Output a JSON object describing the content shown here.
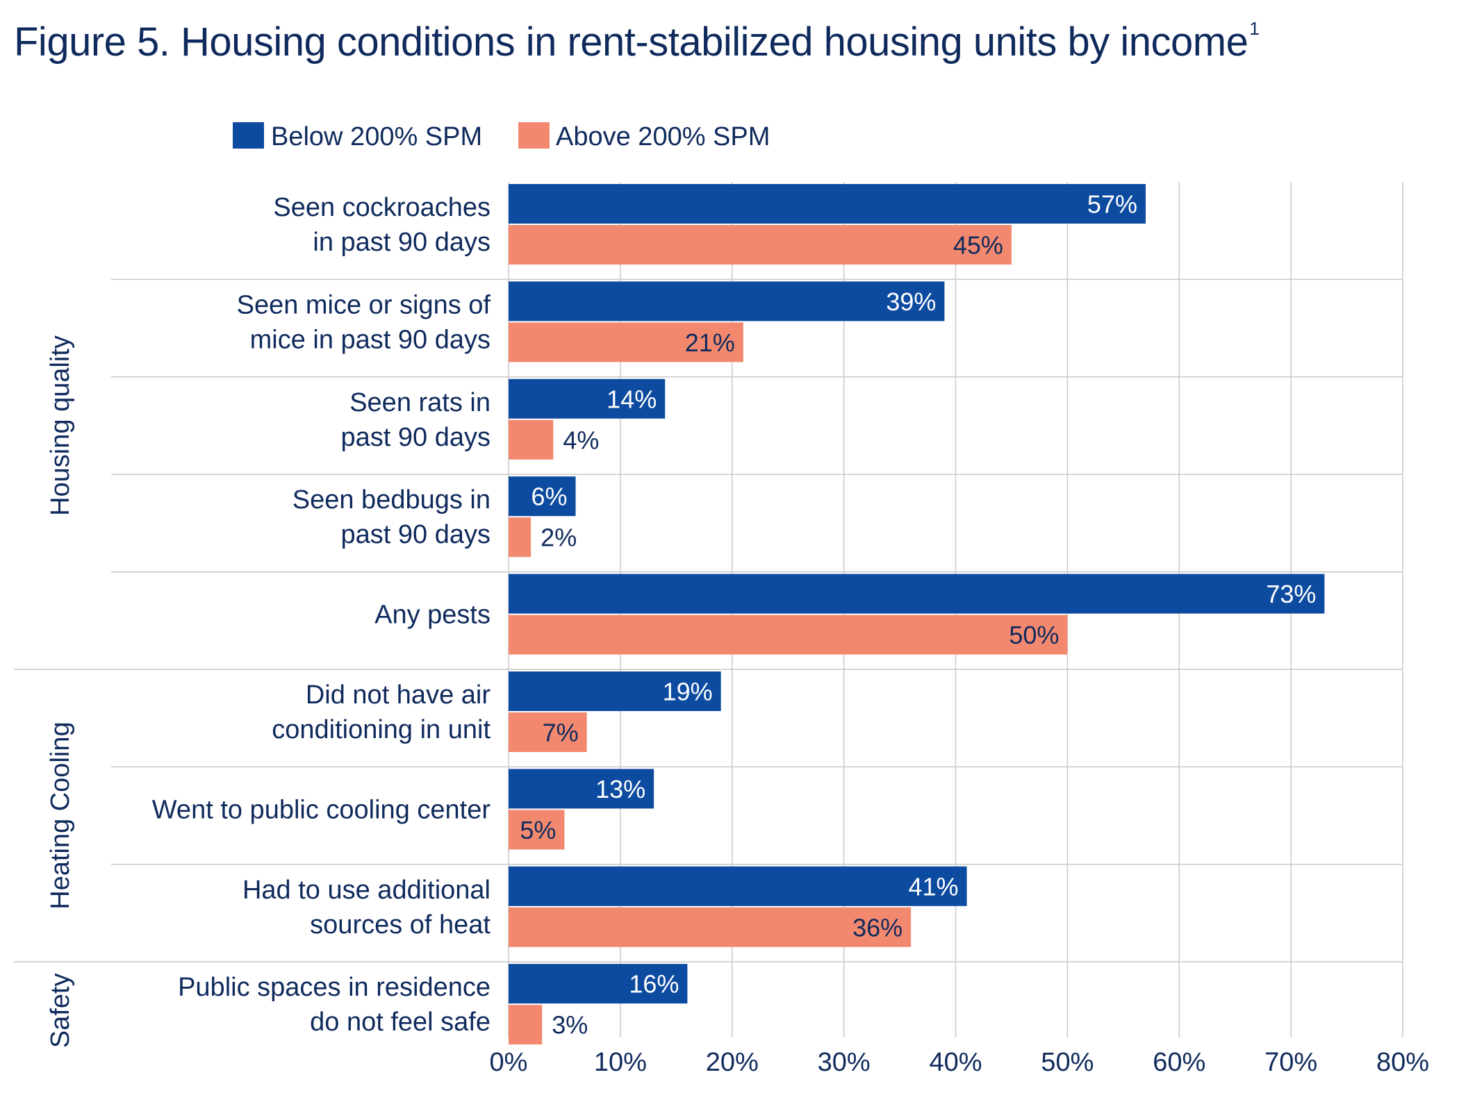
{
  "title": "Figure 5. Housing conditions in rent-stabilized housing units by income",
  "title_footnote": "1",
  "chart_data": {
    "type": "bar",
    "orientation": "horizontal",
    "xlim": [
      0,
      80
    ],
    "xticks": [
      "0%",
      "10%",
      "20%",
      "30%",
      "40%",
      "50%",
      "60%",
      "70%",
      "80%"
    ],
    "grid": true,
    "legend_position": "top-left",
    "series": [
      {
        "name": "Below 200% SPM",
        "color": "#0d4ba0"
      },
      {
        "name": "Above 200% SPM",
        "color": "#f2896f"
      }
    ],
    "groups": [
      {
        "label": "Housing quality",
        "count": 5
      },
      {
        "label": "Heating Cooling",
        "count": 3
      },
      {
        "label": "Safety",
        "count": 1
      }
    ],
    "categories": [
      {
        "label": [
          "Seen cockroaches",
          "in past 90 days"
        ],
        "values": [
          57,
          45
        ],
        "labels": [
          "57%",
          "45%"
        ]
      },
      {
        "label": [
          "Seen mice or signs of",
          "mice in past 90 days"
        ],
        "values": [
          39,
          21
        ],
        "labels": [
          "39%",
          "21%"
        ]
      },
      {
        "label": [
          "Seen rats in",
          "past 90 days"
        ],
        "values": [
          14,
          4
        ],
        "labels": [
          "14%",
          "4%"
        ]
      },
      {
        "label": [
          "Seen bedbugs in",
          "past 90 days"
        ],
        "values": [
          6,
          2
        ],
        "labels": [
          "6%",
          "2%"
        ]
      },
      {
        "label": [
          "Any pests"
        ],
        "values": [
          73,
          50
        ],
        "labels": [
          "73%",
          "50%"
        ]
      },
      {
        "label": [
          "Did not have air",
          "conditioning in unit"
        ],
        "values": [
          19,
          7
        ],
        "labels": [
          "19%",
          "7%"
        ]
      },
      {
        "label": [
          "Went to public cooling center"
        ],
        "values": [
          13,
          5
        ],
        "labels": [
          "13%",
          "5%"
        ]
      },
      {
        "label": [
          "Had to use additional",
          "sources of heat"
        ],
        "values": [
          41,
          36
        ],
        "labels": [
          "41%",
          "36%"
        ]
      },
      {
        "label": [
          "Public spaces in residence",
          "do not feel safe"
        ],
        "values": [
          16,
          3
        ],
        "labels": [
          "16%",
          "3%"
        ]
      }
    ]
  }
}
